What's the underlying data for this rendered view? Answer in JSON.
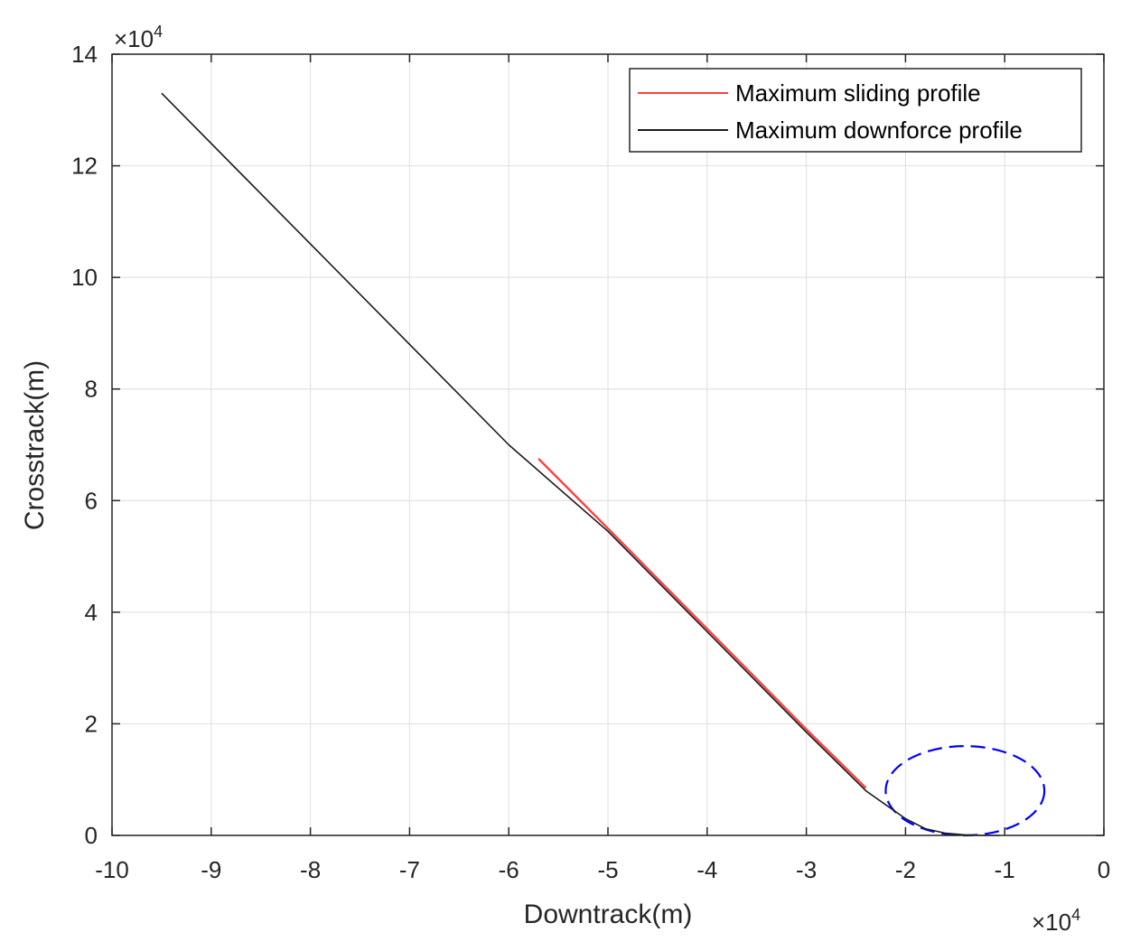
{
  "chart_data": {
    "type": "line",
    "xlabel": "Downtrack(m)",
    "ylabel": "Crosstrack(m)",
    "x_multiplier": "×10",
    "x_multiplier_exp": "4",
    "y_multiplier": "×10",
    "y_multiplier_exp": "4",
    "x_scale": 10000,
    "y_scale": 10000,
    "xlim": [
      -10,
      0
    ],
    "ylim": [
      0,
      14
    ],
    "xticks": [
      -10,
      -9,
      -8,
      -7,
      -6,
      -5,
      -4,
      -3,
      -2,
      -1,
      0
    ],
    "yticks": [
      0,
      2,
      4,
      6,
      8,
      10,
      12,
      14
    ],
    "xtick_labels": [
      "-10",
      "-9",
      "-8",
      "-7",
      "-6",
      "-5",
      "-4",
      "-3",
      "-2",
      "-1",
      "0"
    ],
    "ytick_labels": [
      "0",
      "2",
      "4",
      "6",
      "8",
      "10",
      "12",
      "14"
    ],
    "grid": true,
    "legend_position": "top-right",
    "series": [
      {
        "name": "Maximum sliding profile",
        "color": "#ff4040",
        "x": [
          -5.7,
          -5.0,
          -4.0,
          -3.0,
          -2.4
        ],
        "y": [
          6.75,
          5.5,
          3.7,
          1.9,
          0.85
        ]
      },
      {
        "name": "Maximum downforce profile",
        "color": "#1a1a1a",
        "x": [
          -9.5,
          -8.0,
          -7.0,
          -6.0,
          -5.0,
          -4.0,
          -3.0,
          -2.4,
          -2.0,
          -1.8,
          -1.6,
          -1.4,
          -1.2,
          -1.05
        ],
        "y": [
          13.3,
          10.6,
          8.8,
          7.0,
          5.45,
          3.65,
          1.85,
          0.8,
          0.3,
          0.12,
          0.04,
          0.01,
          0.0,
          0.0
        ]
      }
    ],
    "annotations": [
      {
        "type": "dashed-ellipse",
        "color": "#0000ff",
        "cx": -1.4,
        "cy": 0.8,
        "rx": 0.8,
        "ry": 0.8
      }
    ]
  }
}
